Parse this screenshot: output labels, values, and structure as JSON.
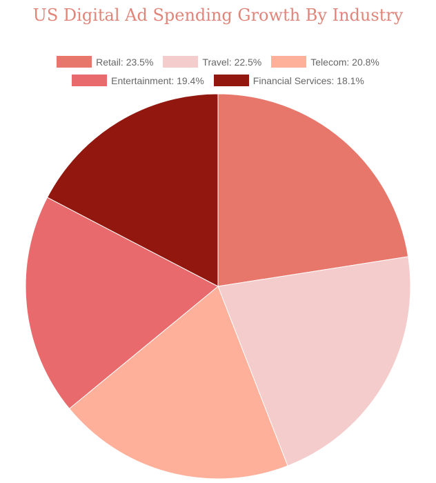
{
  "chart_data": {
    "type": "pie",
    "title": "US Digital Ad Spending Growth By Industry",
    "categories": [
      "Retail",
      "Travel",
      "Telecom",
      "Entertainment",
      "Financial Services"
    ],
    "values": [
      23.5,
      22.5,
      20.8,
      19.4,
      18.1
    ],
    "legend_labels": [
      "Retail: 23.5%",
      "Travel: 22.5%",
      "Telecom: 20.8%",
      "Entertainment: 19.4%",
      "Financial Services: 18.1%"
    ],
    "colors": [
      "#E8776B",
      "#F4CCCC",
      "#FFB09A",
      "#E86A6C",
      "#92170E"
    ],
    "legend_placement": "top",
    "start_angle": "top",
    "direction": "clockwise"
  }
}
